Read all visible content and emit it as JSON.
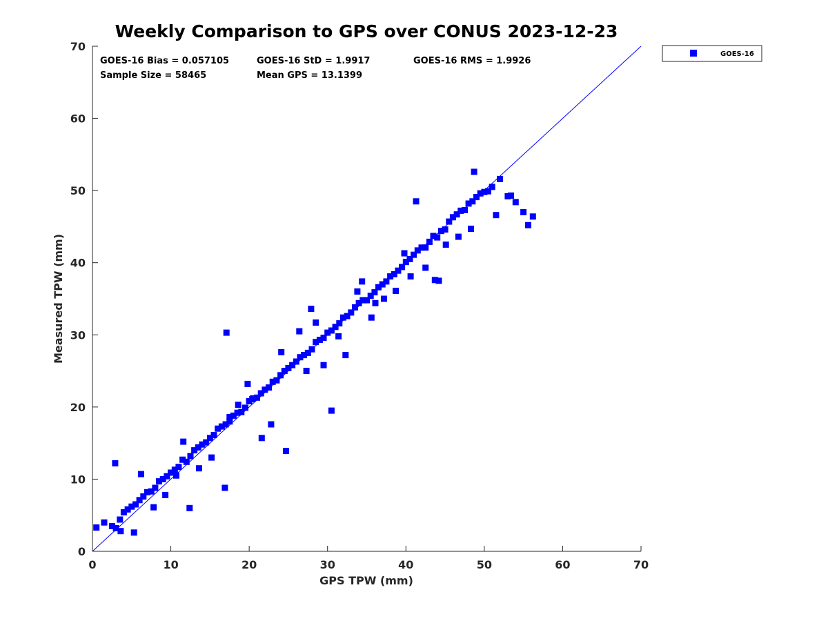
{
  "chart_data": {
    "type": "scatter",
    "title": "Weekly Comparison to GPS over CONUS 2023-12-23",
    "xlabel": "GPS TPW (mm)",
    "ylabel": "Measured TPW (mm)",
    "xlim": [
      0,
      70
    ],
    "ylim": [
      0,
      70
    ],
    "xticks": [
      "0",
      "10",
      "20",
      "30",
      "40",
      "50",
      "60",
      "70"
    ],
    "yticks": [
      "0",
      "10",
      "20",
      "30",
      "40",
      "50",
      "60",
      "70"
    ],
    "grid": false,
    "legend_position": "outside-top-right",
    "reference_line": {
      "name": "1:1 line",
      "x": [
        0,
        70
      ],
      "y": [
        0,
        70
      ],
      "color": "#0000ff"
    },
    "series": [
      {
        "name": "GOES-16",
        "marker": "square",
        "color": "#0000ff",
        "description": "dense cloud of points clustered along the 1:1 line from 0 to ~56 mm",
        "x": [
          0.5,
          1.5,
          2.5,
          3.0,
          3.5,
          4.0,
          4.5,
          5.0,
          5.5,
          6.0,
          6.5,
          7.0,
          7.5,
          8.0,
          8.5,
          9.0,
          9.5,
          10.0,
          10.5,
          11.0,
          11.5,
          12.0,
          12.5,
          13.0,
          13.5,
          14.0,
          14.5,
          15.0,
          15.5,
          16.0,
          16.5,
          17.0,
          17.5,
          18.0,
          18.5,
          19.0,
          19.5,
          20.0,
          20.5,
          21.0,
          21.5,
          22.0,
          22.5,
          23.0,
          23.5,
          24.0,
          24.5,
          25.0,
          25.5,
          26.0,
          26.5,
          27.0,
          27.5,
          28.0,
          28.5,
          29.0,
          29.5,
          30.0,
          30.5,
          31.0,
          31.5,
          32.0,
          32.5,
          33.0,
          33.5,
          34.0,
          34.5,
          35.0,
          35.5,
          36.0,
          36.5,
          37.0,
          37.5,
          38.0,
          38.5,
          39.0,
          39.5,
          40.0,
          40.5,
          41.0,
          41.5,
          42.0,
          42.5,
          43.0,
          43.5,
          44.0,
          44.5,
          45.0,
          45.5,
          46.0,
          46.5,
          47.0,
          47.5,
          48.0,
          48.5,
          49.0,
          49.5,
          50.0,
          50.5,
          51.0,
          52.0,
          53.0,
          54.0,
          55.0,
          56.2,
          2.9,
          6.2,
          17.1,
          27.9,
          30.5,
          35.6,
          41.3,
          29.5,
          24.7,
          48.7,
          51.5,
          53.4,
          16.9,
          18.6,
          42.5,
          55.6,
          12.4,
          7.8,
          44.2,
          21.6,
          37.2,
          32.3,
          5.3,
          22.8,
          38.7,
          26.4,
          13.6,
          9.3,
          46.7,
          19.8,
          33.8,
          28.5,
          15.2,
          40.6,
          10.7,
          48.3,
          36.1,
          24.1,
          31.4,
          45.1,
          3.6,
          20.4,
          43.7,
          11.6,
          34.4,
          27.3,
          39.8,
          17.5
        ],
        "y": [
          3.3,
          4.0,
          3.5,
          3.2,
          4.4,
          5.4,
          5.8,
          6.2,
          6.5,
          7.1,
          7.6,
          8.2,
          8.3,
          8.8,
          9.7,
          10.0,
          10.4,
          10.9,
          11.3,
          11.7,
          12.7,
          12.4,
          13.2,
          14.0,
          14.4,
          14.8,
          15.1,
          15.7,
          16.1,
          17.0,
          17.3,
          17.6,
          18.0,
          18.8,
          19.2,
          19.3,
          19.9,
          20.8,
          21.2,
          21.3,
          21.9,
          22.4,
          22.7,
          23.5,
          23.7,
          24.4,
          25.0,
          25.4,
          25.8,
          26.3,
          26.9,
          27.2,
          27.5,
          28.0,
          29.0,
          29.3,
          29.6,
          30.3,
          30.6,
          31.1,
          31.6,
          32.4,
          32.6,
          33.1,
          33.8,
          34.4,
          34.8,
          34.8,
          35.4,
          35.9,
          36.6,
          37.0,
          37.4,
          38.1,
          38.4,
          38.9,
          39.4,
          40.1,
          40.5,
          41.1,
          41.7,
          42.1,
          42.1,
          42.9,
          43.7,
          43.5,
          44.4,
          44.6,
          45.7,
          46.3,
          46.7,
          47.2,
          47.3,
          48.2,
          48.5,
          49.1,
          49.6,
          49.8,
          49.9,
          50.5,
          51.6,
          49.2,
          48.4,
          47.0,
          46.4,
          12.2,
          10.7,
          30.3,
          33.6,
          19.5,
          32.4,
          48.5,
          25.8,
          13.9,
          52.6,
          46.6,
          49.3,
          8.8,
          20.3,
          39.3,
          45.2,
          6.0,
          6.1,
          37.5,
          15.7,
          35.0,
          27.2,
          2.6,
          17.6,
          36.1,
          30.5,
          11.5,
          7.8,
          43.6,
          23.2,
          36.0,
          31.7,
          13.0,
          38.1,
          10.5,
          44.7,
          34.4,
          27.6,
          29.8,
          42.5,
          2.8,
          21.1,
          37.6,
          15.2,
          37.4,
          25.0,
          41.3,
          18.6
        ]
      }
    ],
    "annotations": [
      "GOES-16 Bias = 0.057105",
      "GOES-16 StD = 1.9917",
      "GOES-16 RMS = 1.9926",
      "Sample Size = 58465",
      "Mean GPS = 13.1399"
    ]
  }
}
